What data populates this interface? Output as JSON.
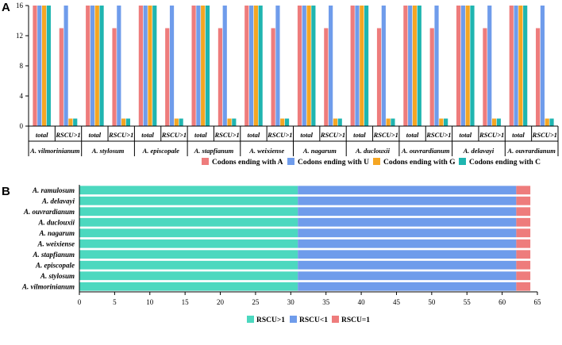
{
  "panelA": {
    "letter": "A",
    "chart_data": {
      "type": "bar",
      "title": "",
      "xlabel": "",
      "ylabel": "",
      "ylim": [
        0,
        16
      ],
      "yticks": [
        0,
        4,
        8,
        12,
        16
      ],
      "groups": [
        "A. vilmorinianum",
        "A. stylosum",
        "A. episcopale",
        "A. stapfianum",
        "A. weixiense",
        "A. nagarum",
        "A. duclouxii",
        "A. ouvrardianum",
        "A. delavayi",
        "A. ouvrardianum"
      ],
      "subcategories": [
        "total",
        "RSCU>1"
      ],
      "series": [
        {
          "name": "Codons ending with A",
          "color": "#EE7C7C",
          "total": 16,
          "rscu_gt1": 13
        },
        {
          "name": "Codons ending with U",
          "color": "#6F9CEB",
          "total": 16,
          "rscu_gt1": 16
        },
        {
          "name": "Codons ending with G",
          "color": "#F5A623",
          "total": 16,
          "rscu_gt1": 1
        },
        {
          "name": "Codons ending with C",
          "color": "#1FB5B0",
          "total": 16,
          "rscu_gt1": 1
        }
      ],
      "legend_position": "bottom"
    }
  },
  "panelB": {
    "letter": "B",
    "chart_data": {
      "type": "bar",
      "orientation": "horizontal",
      "stacked": true,
      "title": "",
      "xlabel": "",
      "ylabel": "",
      "xlim": [
        0,
        65
      ],
      "xticks": [
        0,
        5,
        10,
        15,
        20,
        25,
        30,
        35,
        40,
        45,
        50,
        55,
        60,
        65
      ],
      "categories": [
        "A. ramulosum",
        "A. delavayi",
        "A. ouvrardianum",
        "A. duclouxii",
        "A. nagarum",
        "A. weixiense",
        "A. stapfianum",
        "A. episcopale",
        "A. stylosum",
        "A. vilmorinianum"
      ],
      "series": [
        {
          "name": "RSCU>1",
          "color": "#4CD8BF",
          "values": [
            31,
            31,
            31,
            31,
            31,
            31,
            31,
            31,
            31,
            31
          ]
        },
        {
          "name": "RSCU<1",
          "color": "#6F9CEB",
          "values": [
            31,
            31,
            31,
            31,
            31,
            31,
            31,
            31,
            31,
            31
          ]
        },
        {
          "name": "RSCU=1",
          "color": "#EE7C7C",
          "values": [
            2,
            2,
            2,
            2,
            2,
            2,
            2,
            2,
            2,
            2
          ]
        }
      ],
      "legend_position": "bottom"
    }
  }
}
